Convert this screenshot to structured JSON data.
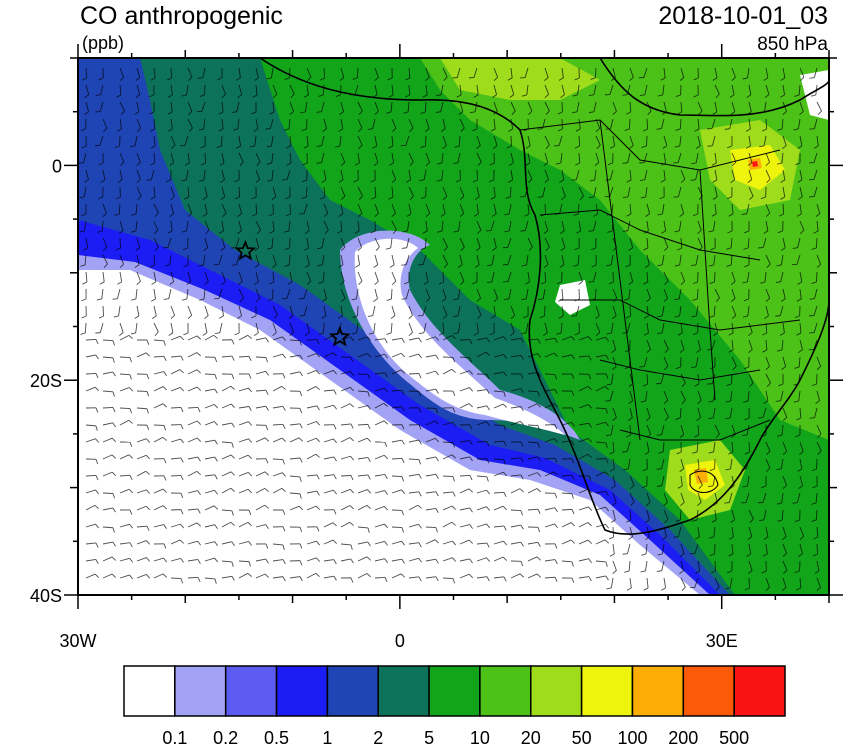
{
  "header": {
    "title": "CO anthropogenic",
    "units": "(ppb)",
    "valid_time": "2018-10-01_03",
    "level": "850 hPa"
  },
  "map": {
    "lon_range": [
      -30,
      40
    ],
    "lat_range": [
      -40,
      10
    ],
    "lon_ticks": [
      {
        "value": -30,
        "label": "30W"
      },
      {
        "value": 0,
        "label": "0"
      },
      {
        "value": 30,
        "label": "30E"
      }
    ],
    "lat_ticks": [
      {
        "value": 0,
        "label": "0"
      },
      {
        "value": -20,
        "label": "20S"
      },
      {
        "value": -40,
        "label": "40S"
      }
    ],
    "markers": [
      {
        "name": "star-marker",
        "lon": -14.4,
        "lat": -8.0
      },
      {
        "name": "star-marker",
        "lon": -5.6,
        "lat": -16.0
      }
    ]
  },
  "colorbar": {
    "labels": [
      "0.1",
      "0.2",
      "0.5",
      "1",
      "2",
      "5",
      "10",
      "20",
      "50",
      "100",
      "200",
      "500"
    ],
    "colors": [
      "#ffffff",
      "#a3a3f5",
      "#5c5cf2",
      "#1c1cf4",
      "#1f45b5",
      "#0c735a",
      "#12a51a",
      "#4cc218",
      "#9fdc1c",
      "#eef40c",
      "#fcae06",
      "#fc5a06",
      "#fb1212"
    ]
  }
}
